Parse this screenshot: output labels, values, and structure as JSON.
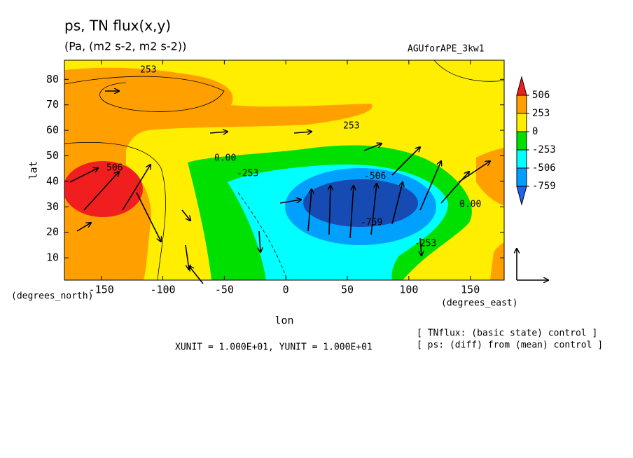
{
  "chart_data": {
    "type": "contour",
    "title": "ps, TN flux(x,y)",
    "subtitle": "(Pa, (m2 s-2, m2 s-2))",
    "run_name": "AGUforAPE_3kw1",
    "x_label": "lon",
    "y_label": "lat",
    "x_unit": "(degrees_east)",
    "y_unit": "(degrees_north)",
    "xlim": [
      -180,
      177.5
    ],
    "ylim": [
      1.25,
      87.5
    ],
    "xticks": [
      -150,
      -100,
      -50,
      0,
      50,
      100,
      150
    ],
    "yticks": [
      10,
      20,
      30,
      40,
      50,
      60,
      70,
      80
    ],
    "levels": [
      -759,
      -506,
      -253,
      0,
      253,
      506
    ],
    "colors": [
      "#1e64f0",
      "#00a0ff",
      "#00ffff",
      "#00e000",
      "#ffee00",
      "#ffa000",
      "#f01e1e"
    ],
    "contour_labels": [
      "253",
      "253",
      "506",
      "0.00",
      "-253",
      "-506",
      "-759",
      "-253",
      "0.00"
    ],
    "notes": [
      "XUNIT = 1.000E+01, YUNIT = 1.000E+01",
      "[ TNflux: (basic state) control ]",
      "[ ps: (diff) from (mean) control ]"
    ]
  }
}
